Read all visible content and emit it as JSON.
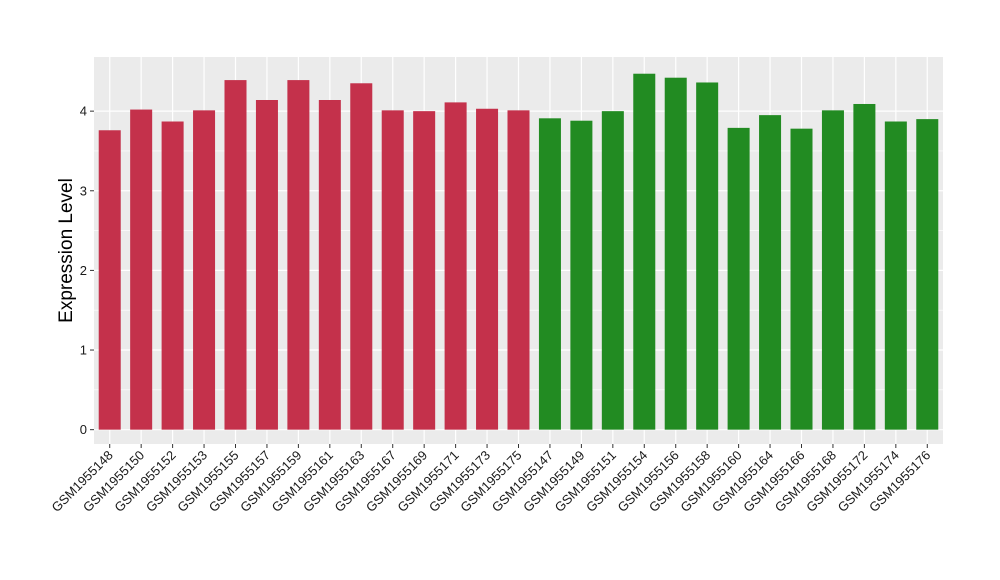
{
  "chart_data": {
    "type": "bar",
    "title": "",
    "xlabel": "",
    "ylabel": "Expression Level",
    "ylim": [
      -0.18,
      4.68
    ],
    "yticks": [
      0,
      1,
      2,
      3,
      4
    ],
    "grid": true,
    "legend": "none",
    "categories": [
      "GSM1955148",
      "GSM1955150",
      "GSM1955152",
      "GSM1955153",
      "GSM1955155",
      "GSM1955157",
      "GSM1955159",
      "GSM1955161",
      "GSM1955163",
      "GSM1955167",
      "GSM1955169",
      "GSM1955171",
      "GSM1955173",
      "GSM1955175",
      "GSM1955147",
      "GSM1955149",
      "GSM1955151",
      "GSM1955154",
      "GSM1955156",
      "GSM1955158",
      "GSM1955160",
      "GSM1955164",
      "GSM1955166",
      "GSM1955168",
      "GSM1955172",
      "GSM1955174",
      "GSM1955176"
    ],
    "values": [
      3.76,
      4.02,
      3.87,
      4.01,
      4.39,
      4.14,
      4.39,
      4.14,
      4.35,
      4.01,
      4.0,
      4.11,
      4.03,
      4.01,
      3.91,
      3.88,
      4.0,
      4.47,
      4.42,
      4.36,
      3.79,
      3.95,
      3.78,
      4.01,
      4.09,
      3.87,
      3.9
    ],
    "bar_colors": [
      "#c4314b",
      "#c4314b",
      "#c4314b",
      "#c4314b",
      "#c4314b",
      "#c4314b",
      "#c4314b",
      "#c4314b",
      "#c4314b",
      "#c4314b",
      "#c4314b",
      "#c4314b",
      "#c4314b",
      "#c4314b",
      "#228b22",
      "#228b22",
      "#228b22",
      "#228b22",
      "#228b22",
      "#228b22",
      "#228b22",
      "#228b22",
      "#228b22",
      "#228b22",
      "#228b22",
      "#228b22",
      "#228b22"
    ],
    "panel_background": "#ebebeb",
    "gridline_color": "#ffffff"
  }
}
